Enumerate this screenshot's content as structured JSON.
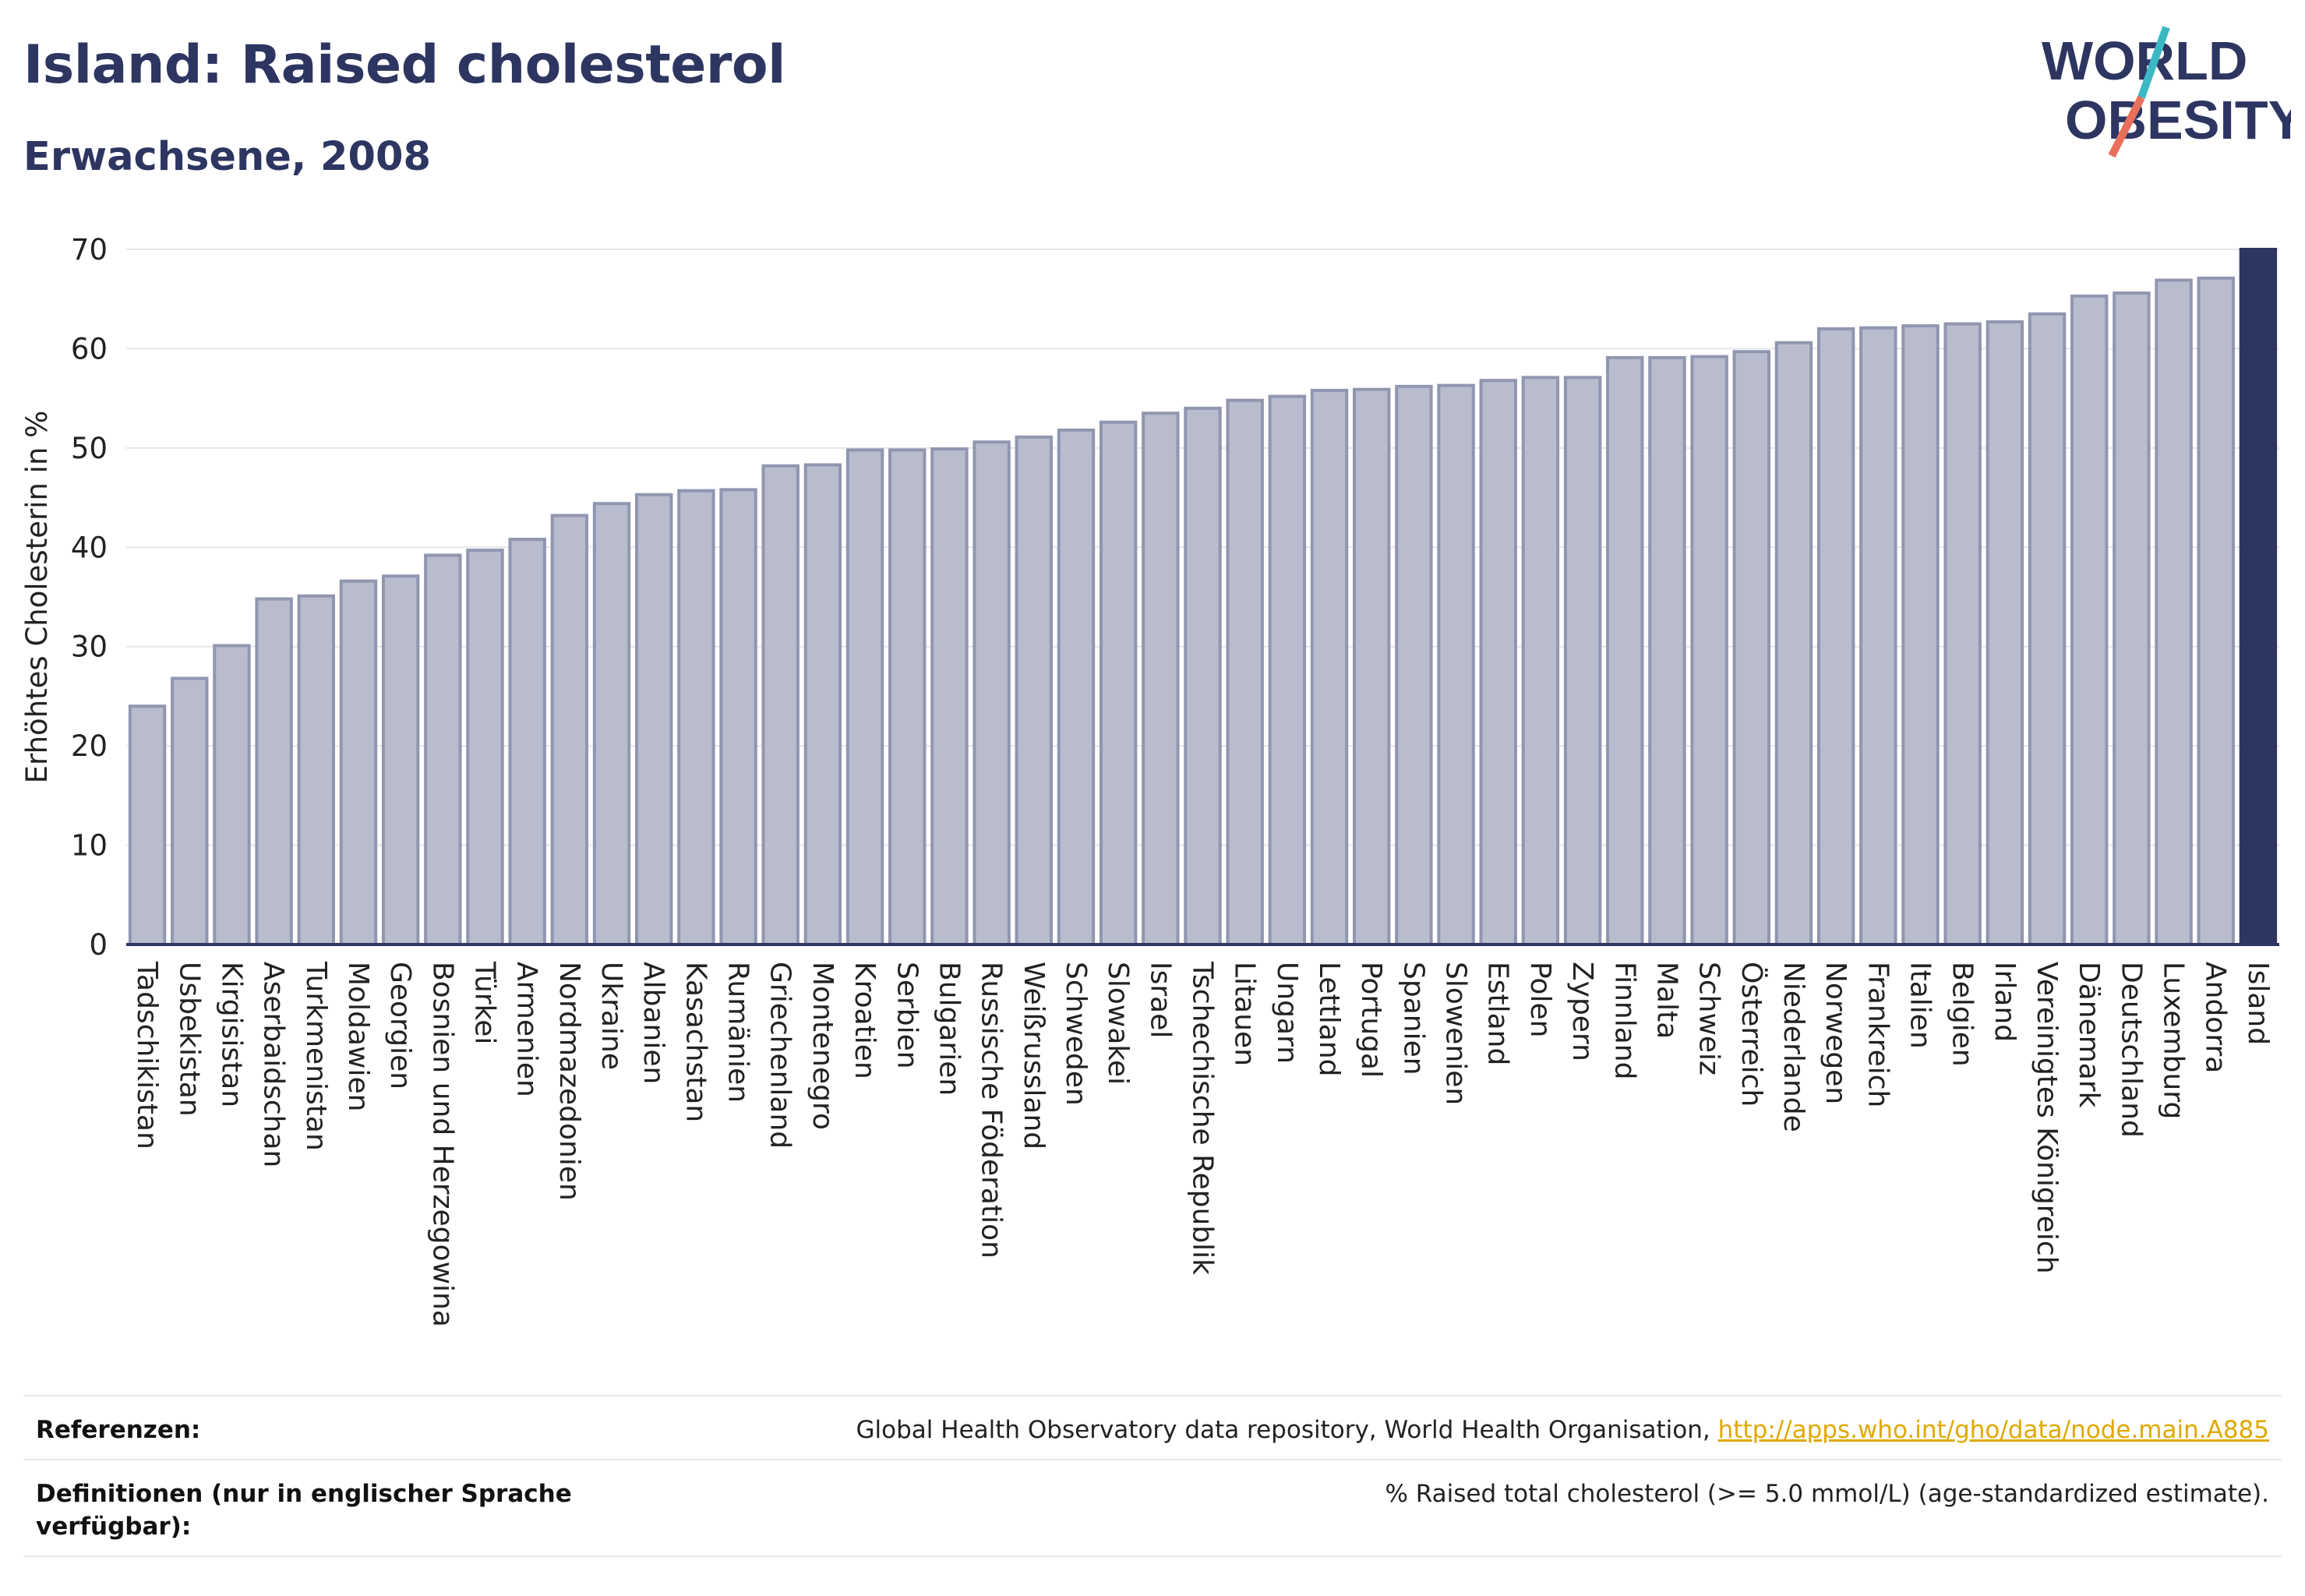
{
  "header": {
    "title": "Island: Raised cholesterol",
    "subtitle": "Erwachsene, 2008",
    "logo_line1": "WORLD",
    "logo_line2": "OBESITY"
  },
  "colors": {
    "title": "#2d3561",
    "bar": "#b8bccd",
    "bar_stroke": "#9196b0",
    "highlight": "#2d3561",
    "logo_teal": "#3bb8c4",
    "logo_coral": "#e8705a",
    "link": "#e0a800"
  },
  "chart_data": {
    "type": "bar",
    "ylabel": "Erhöhtes Cholesterin in %",
    "ylim": [
      0,
      70
    ],
    "yticks": [
      0,
      10,
      20,
      30,
      40,
      50,
      60,
      70
    ],
    "grid": true,
    "highlight": "Island",
    "categories": [
      "Tadschikistan",
      "Usbekistan",
      "Kirgisistan",
      "Aserbaidschan",
      "Turkmenistan",
      "Moldawien",
      "Georgien",
      "Bosnien und Herzegowina",
      "Türkei",
      "Armenien",
      "Nordmazedonien",
      "Ukraine",
      "Albanien",
      "Kasachstan",
      "Rumänien",
      "Griechenland",
      "Montenegro",
      "Kroatien",
      "Serbien",
      "Bulgarien",
      "Russische Föderation",
      "Weißrussland",
      "Schweden",
      "Slowakei",
      "Israel",
      "Tschechische Republik",
      "Litauen",
      "Ungarn",
      "Lettland",
      "Portugal",
      "Spanien",
      "Slowenien",
      "Estland",
      "Polen",
      "Zypern",
      "Finnland",
      "Malta",
      "Schweiz",
      "Österreich",
      "Niederlande",
      "Norwegen",
      "Frankreich",
      "Italien",
      "Belgien",
      "Irland",
      "Vereinigtes Königreich",
      "Dänemark",
      "Deutschland",
      "Luxemburg",
      "Andorra",
      "Island"
    ],
    "values": [
      24.0,
      26.8,
      30.1,
      34.8,
      35.1,
      36.6,
      37.1,
      39.2,
      39.7,
      40.8,
      43.2,
      44.4,
      45.3,
      45.7,
      45.8,
      48.2,
      48.3,
      49.8,
      49.8,
      49.9,
      50.6,
      51.1,
      51.8,
      52.6,
      53.5,
      54.0,
      54.8,
      55.2,
      55.8,
      55.9,
      56.2,
      56.3,
      56.8,
      57.1,
      57.1,
      59.1,
      59.1,
      59.2,
      59.7,
      60.6,
      62.0,
      62.1,
      62.3,
      62.5,
      62.7,
      63.5,
      65.3,
      65.6,
      66.9,
      67.1,
      70.0
    ]
  },
  "footer": {
    "references_label": "Referenzen:",
    "references_text": "Global Health Observatory data repository, World Health Organisation,",
    "references_link": "http://apps.who.int/gho/data/node.main.A885",
    "definitions_label": "Definitionen (nur in englischer Sprache verfügbar):",
    "definitions_text": "% Raised total cholesterol (>= 5.0 mmol/L) (age-standardized estimate)."
  }
}
